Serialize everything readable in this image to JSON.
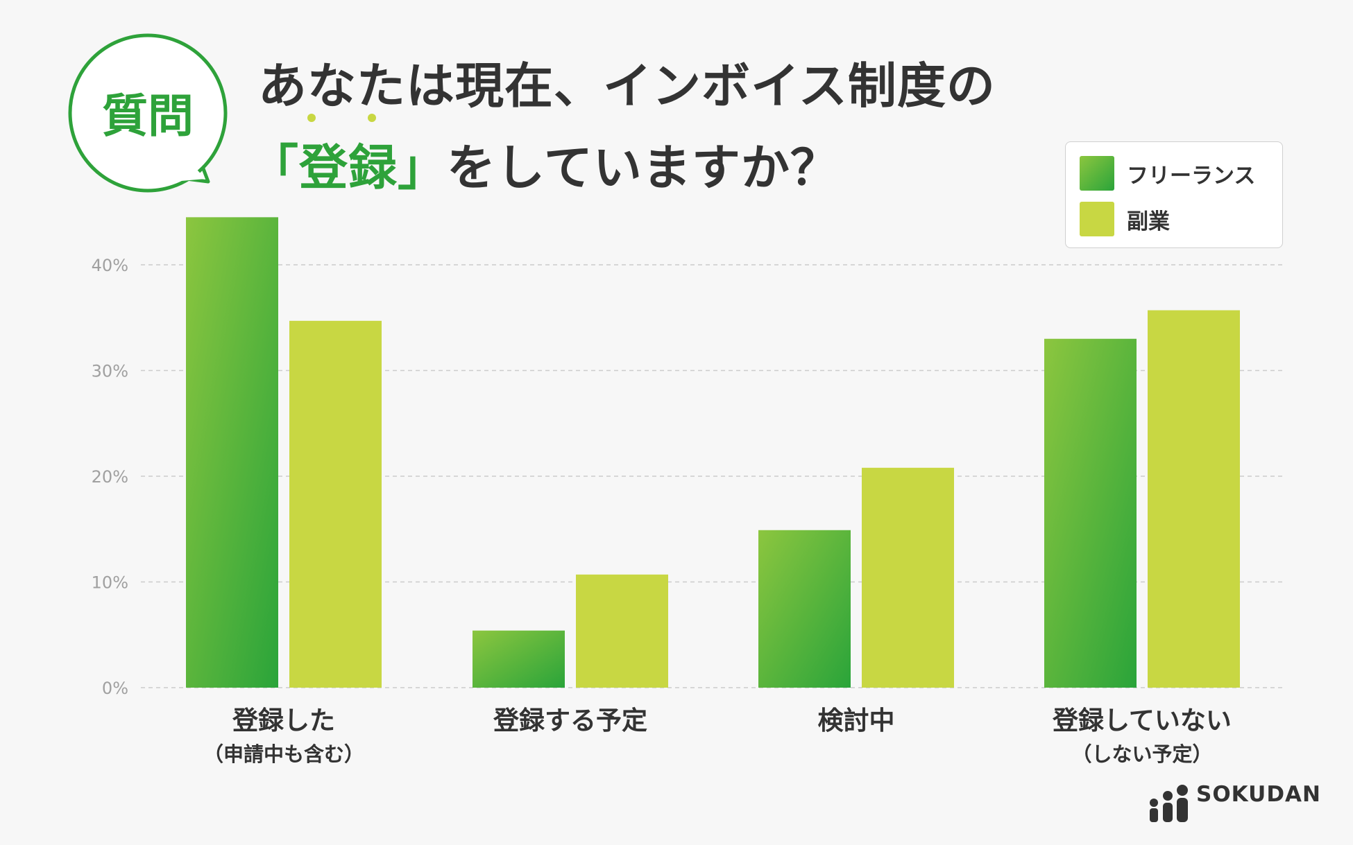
{
  "question_badge": "質問",
  "title": {
    "line1": "あなたは現在、インボイス制度の",
    "line2_open": "「",
    "line2_accent": "登録",
    "line2_close": "」",
    "line2_rest": "をしていますか？"
  },
  "legend": [
    {
      "label": "フリーランス"
    },
    {
      "label": "副業"
    }
  ],
  "colors": {
    "freelance_top": "#8cc63f",
    "freelance_bottom": "#2aa43a",
    "side_job": "#c8d743",
    "accent": "#2ea23a",
    "text": "#333333",
    "grid": "#cccccc",
    "tick": "#a0a0a0"
  },
  "chart_data": {
    "type": "bar",
    "categories": [
      [
        "登録した",
        "（申請中も含む）"
      ],
      [
        "登録する予定"
      ],
      [
        "検討中"
      ],
      [
        "登録していない",
        "（しない予定）"
      ]
    ],
    "series": [
      {
        "name": "フリーランス",
        "values": [
          44.5,
          5.4,
          14.9,
          33.0
        ]
      },
      {
        "name": "副業",
        "values": [
          34.7,
          10.7,
          20.8,
          35.7
        ]
      }
    ],
    "yticks": [
      "0%",
      "10%",
      "20%",
      "30%",
      "40%"
    ],
    "ylim": [
      0,
      45
    ],
    "grid": true,
    "legend_position": "top-right"
  },
  "logo": {
    "text": "SOKUDAN"
  }
}
